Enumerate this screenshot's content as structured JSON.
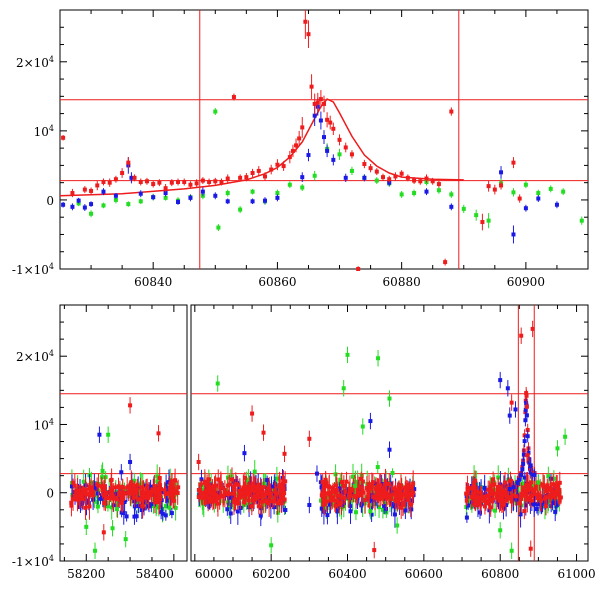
{
  "colors": {
    "red": "#ee1c1c",
    "blue": "#1a1ae6",
    "green": "#22dd22",
    "axis": "#000000"
  },
  "chart_data": [
    {
      "type": "scatter",
      "panel": "top",
      "title": "",
      "xlabel": "",
      "ylabel": "",
      "xlim": [
        60825,
        60910
      ],
      "ylim": [
        -10000,
        27500
      ],
      "xticks": [
        60840,
        60860,
        60880,
        60900
      ],
      "xtick_labels": [
        "60840",
        "60860",
        "60880",
        "60900"
      ],
      "yticks": [
        -10000,
        0,
        10000,
        20000
      ],
      "ytick_labels": [
        {
          "base": "-1×10",
          "exp": "4"
        },
        {
          "base": "0",
          "exp": ""
        },
        {
          "base": "10",
          "exp": "4"
        },
        {
          "base": "2×10",
          "exp": "4"
        }
      ],
      "vlines": [
        60847.5,
        60889.2
      ],
      "hlines": [
        14500,
        2800
      ],
      "model_curve": {
        "name": "fit",
        "x": [
          60825,
          60835,
          60845,
          60850,
          60855,
          60858,
          60860,
          60862,
          60864,
          60866,
          60867,
          60868,
          60869,
          60870,
          60872,
          60874,
          60876,
          60878,
          60880,
          60885,
          60890
        ],
        "y": [
          600,
          900,
          1600,
          2100,
          2900,
          3800,
          4700,
          6200,
          8400,
          11800,
          13500,
          14600,
          14200,
          12600,
          9200,
          6500,
          4900,
          3900,
          3300,
          3000,
          2900
        ]
      },
      "series": [
        {
          "name": "red",
          "x": [
            60825.5,
            60827,
            60829,
            60830,
            60831,
            60832,
            60833,
            60834,
            60835,
            60836,
            60837,
            60838,
            60839,
            60840,
            60841,
            60842,
            60843,
            60844,
            60845,
            60846,
            60847,
            60848,
            60849,
            60850,
            60851,
            60852,
            60853,
            60854,
            60855,
            60856,
            60857,
            60858,
            60859,
            60860,
            60861,
            60862,
            60862.5,
            60863,
            60863.5,
            60864,
            60864.5,
            60865,
            60865.5,
            60866,
            60866.5,
            60867,
            60867.5,
            60868,
            60868.5,
            60869,
            60870,
            60871,
            60872,
            60873,
            60874,
            60875,
            60876,
            60877,
            60878,
            60879,
            60880,
            60881,
            60882,
            60883,
            60884,
            60885,
            60886,
            60887,
            60888,
            60893,
            60894,
            60895,
            60896,
            60898,
            60899
          ],
          "y": [
            9000,
            1000,
            1500,
            1300,
            2100,
            2600,
            2500,
            3000,
            3900,
            5400,
            3200,
            2600,
            2700,
            2300,
            2500,
            1700,
            2500,
            2600,
            2600,
            2200,
            2400,
            2800,
            2600,
            2700,
            2600,
            3100,
            14900,
            3200,
            3300,
            3900,
            4200,
            3400,
            4400,
            5100,
            4900,
            6200,
            7100,
            7900,
            8900,
            10500,
            25800,
            24000,
            16400,
            13900,
            14100,
            14600,
            13900,
            11600,
            11200,
            10300,
            8700,
            7600,
            6600,
            -10000,
            5200,
            4600,
            4100,
            3300,
            3000,
            3400,
            3800,
            3200,
            2800,
            2700,
            3100,
            2700,
            2300,
            -9000,
            12800,
            -3200,
            2000,
            1500,
            2100,
            5400,
            200
          ],
          "err": [
            400,
            600,
            500,
            500,
            700,
            500,
            600,
            500,
            700,
            800,
            500,
            500,
            500,
            500,
            500,
            600,
            500,
            500,
            500,
            500,
            600,
            500,
            500,
            500,
            500,
            600,
            500,
            500,
            600,
            600,
            700,
            600,
            700,
            800,
            700,
            900,
            900,
            1000,
            1100,
            1500,
            2500,
            2000,
            1800,
            1500,
            1400,
            1300,
            1200,
            1100,
            1000,
            900,
            800,
            700,
            600,
            400,
            600,
            600,
            500,
            500,
            500,
            600,
            500,
            500,
            500,
            500,
            600,
            500,
            500,
            500,
            600,
            1200,
            800,
            700,
            600,
            800,
            600
          ]
        },
        {
          "name": "blue",
          "x": [
            60825.5,
            60827,
            60828,
            60829,
            60830,
            60832,
            60834,
            60836,
            60836.5,
            60838,
            60840,
            60842,
            60844,
            60846,
            60848,
            60850,
            60852,
            60856,
            60858,
            60860,
            60864,
            60865,
            60866,
            60866.5,
            60867,
            60867.5,
            60868,
            60869,
            60871,
            60874,
            60878,
            60884,
            60888,
            60896,
            60898,
            60900,
            60902,
            60905
          ],
          "y": [
            -700,
            -1000,
            -100,
            -1100,
            -600,
            1200,
            600,
            5000,
            3200,
            900,
            400,
            1000,
            -300,
            300,
            1200,
            600,
            -200,
            -200,
            -100,
            300,
            3300,
            6500,
            12200,
            13500,
            11500,
            9100,
            7100,
            5800,
            3200,
            3200,
            2500,
            1200,
            -1000,
            4000,
            -5000,
            -1200,
            200,
            -700
          ],
          "err": [
            400,
            500,
            400,
            500,
            400,
            500,
            400,
            1200,
            800,
            500,
            400,
            500,
            400,
            500,
            600,
            500,
            400,
            400,
            500,
            500,
            700,
            900,
            1500,
            1300,
            1300,
            1000,
            900,
            800,
            600,
            500,
            500,
            500,
            500,
            900,
            1300,
            500,
            500,
            500
          ]
        },
        {
          "name": "green",
          "x": [
            60828,
            60830,
            60832,
            60834,
            60836,
            60838,
            60840,
            60842,
            60844,
            60846,
            60848,
            60850,
            60850.5,
            60852,
            60854,
            60856,
            60858,
            60860,
            60862,
            60864,
            60866,
            60868,
            60870,
            60872,
            60874,
            60876,
            60878,
            60880,
            60882,
            60884,
            60886,
            60888,
            60890,
            60892,
            60894,
            60896,
            60898,
            60900,
            60902,
            60904,
            60906,
            60909
          ],
          "y": [
            -500,
            -2000,
            -800,
            0,
            -600,
            -200,
            400,
            300,
            -100,
            400,
            600,
            12800,
            -4000,
            1000,
            -1400,
            1200,
            -200,
            1000,
            2200,
            1800,
            3500,
            7400,
            6600,
            4200,
            3200,
            2800,
            2400,
            800,
            1000,
            2600,
            1400,
            800,
            -1300,
            -2200,
            -3000,
            2400,
            1100,
            2200,
            1000,
            1600,
            1200,
            -3000
          ],
          "err": [
            400,
            500,
            400,
            500,
            400,
            400,
            500,
            400,
            500,
            400,
            500,
            500,
            500,
            500,
            500,
            400,
            500,
            500,
            500,
            500,
            700,
            800,
            800,
            600,
            500,
            500,
            500,
            500,
            500,
            500,
            500,
            500,
            600,
            800,
            1100,
            700,
            600,
            500,
            500,
            500,
            500,
            600
          ]
        }
      ]
    },
    {
      "type": "scatter",
      "panel": "bottom",
      "title": "",
      "xlabel": "",
      "ylabel": "",
      "axis_break": {
        "left_range": [
          58140,
          58430
        ],
        "right_range": [
          59990,
          61030
        ]
      },
      "ylim": [
        -10000,
        27500
      ],
      "xticks": [
        58200,
        58400,
        60000,
        60200,
        60400,
        60600,
        60800,
        61000
      ],
      "xtick_labels": [
        "58200",
        "58400",
        "60000",
        "60200",
        "60400",
        "60600",
        "60800",
        "61000"
      ],
      "yticks": [
        -10000,
        0,
        10000,
        20000
      ],
      "ytick_labels": [
        {
          "base": "-1×10",
          "exp": "4"
        },
        {
          "base": "0",
          "exp": ""
        },
        {
          "base": "10",
          "exp": "4"
        },
        {
          "base": "2×10",
          "exp": "4"
        }
      ],
      "vlines": [
        60847.5,
        60889.2
      ],
      "hlines": [
        14500,
        2800
      ],
      "seasons": [
        {
          "start": 58165,
          "end": 58410,
          "n": 150
        },
        {
          "start": 60010,
          "end": 60240,
          "n": 150
        },
        {
          "start": 60330,
          "end": 60575,
          "n": 150
        },
        {
          "start": 60710,
          "end": 60960,
          "n": 150
        }
      ],
      "outliers": [
        {
          "series": "red",
          "x": [
            58300,
            58365,
            58240,
            60010,
            60150,
            60180,
            60235,
            60300,
            60470,
            60760,
            60830,
            60855,
            60870,
            60880,
            60885
          ],
          "y": [
            12800,
            8700,
            -5800,
            4500,
            11600,
            8800,
            5700,
            7900,
            -8400,
            -2000,
            13200,
            23000,
            5500,
            -8200,
            24000
          ]
        },
        {
          "series": "blue",
          "x": [
            58230,
            58280,
            58300,
            58310,
            60130,
            60300,
            60320,
            60460,
            60510,
            60800,
            60820,
            60825,
            60840,
            60880,
            60890
          ],
          "y": [
            8500,
            3000,
            4500,
            -3500,
            5800,
            -1800,
            2800,
            10500,
            6300,
            16500,
            15300,
            11300,
            12200,
            4000,
            -1700
          ]
        },
        {
          "series": "green",
          "x": [
            58200,
            58220,
            58250,
            58260,
            58270,
            58290,
            58390,
            60060,
            60200,
            60390,
            60400,
            60420,
            60440,
            60460,
            60480,
            60510,
            60530,
            60800,
            60830,
            60900,
            60950,
            60970
          ],
          "y": [
            -5000,
            -8500,
            8500,
            -5200,
            -2400,
            -6800,
            -2200,
            16000,
            -7700,
            15300,
            20200,
            1000,
            9700,
            -2700,
            19700,
            13800,
            -4800,
            -5500,
            -8500,
            1500,
            6500,
            8200
          ]
        }
      ]
    }
  ]
}
